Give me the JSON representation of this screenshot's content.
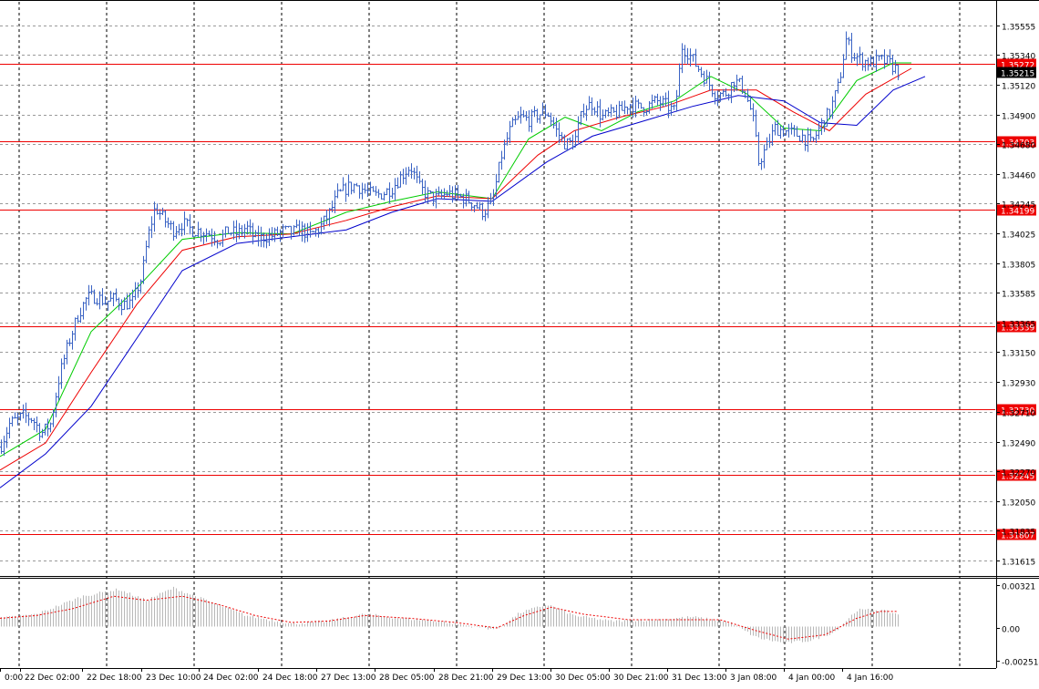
{
  "chart_data": [
    {
      "type": "candlestick",
      "role": "price",
      "ylim": [
        1.315,
        1.3573
      ],
      "y_ticks": [
        "1.35555",
        "1.35340",
        "1.35120",
        "1.34900",
        "1.34680",
        "1.34460",
        "1.34245",
        "1.34025",
        "1.33805",
        "1.33585",
        "1.33365",
        "1.33150",
        "1.32930",
        "1.32710",
        "1.32490",
        "1.32270",
        "1.32050",
        "1.31835",
        "1.31615"
      ],
      "x_ticks": [
        "0:00",
        "22 Dec 02:00",
        "22 Dec 18:00",
        "23 Dec 10:00",
        "24 Dec 02:00",
        "24 Dec 18:00",
        "27 Dec 13:00",
        "28 Dec 05:00",
        "28 Dec 21:00",
        "29 Dec 13:00",
        "30 Dec 05:00",
        "30 Dec 21:00",
        "31 Dec 13:00",
        "3 Jan 08:00",
        "4 Jan 00:00",
        "4 Jan 16:00"
      ],
      "grid": true,
      "horizontal_levels": [
        {
          "value": 1.35272,
          "label": "1.35272"
        },
        {
          "value": 1.34703,
          "label": "1.34703"
        },
        {
          "value": 1.34199,
          "label": "1.34199"
        },
        {
          "value": 1.33339,
          "label": "1.33339"
        },
        {
          "value": 1.3273,
          "label": "1.32730"
        },
        {
          "value": 1.32245,
          "label": "1.32245"
        },
        {
          "value": 1.31807,
          "label": "1.31807"
        }
      ],
      "current_price": {
        "value": 1.35215,
        "label": "1.35215"
      },
      "close_path": [
        [
          0,
          1.3245
        ],
        [
          10,
          1.3262
        ],
        [
          25,
          1.3268
        ],
        [
          35,
          1.3266
        ],
        [
          45,
          1.3255
        ],
        [
          55,
          1.3262
        ],
        [
          65,
          1.3298
        ],
        [
          75,
          1.3322
        ],
        [
          85,
          1.3342
        ],
        [
          95,
          1.3355
        ],
        [
          105,
          1.3356
        ],
        [
          115,
          1.3352
        ],
        [
          125,
          1.3354
        ],
        [
          135,
          1.335
        ],
        [
          145,
          1.3352
        ],
        [
          155,
          1.337
        ],
        [
          162,
          1.34
        ],
        [
          170,
          1.3422
        ],
        [
          180,
          1.3412
        ],
        [
          190,
          1.3405
        ],
        [
          200,
          1.341
        ],
        [
          210,
          1.3405
        ],
        [
          220,
          1.3404
        ],
        [
          230,
          1.3402
        ],
        [
          240,
          1.3398
        ],
        [
          250,
          1.3404
        ],
        [
          260,
          1.3402
        ],
        [
          270,
          1.3407
        ],
        [
          280,
          1.3398
        ],
        [
          290,
          1.34
        ],
        [
          300,
          1.3401
        ],
        [
          310,
          1.3404
        ],
        [
          320,
          1.3403
        ],
        [
          330,
          1.3405
        ],
        [
          340,
          1.3401
        ],
        [
          350,
          1.3406
        ],
        [
          360,
          1.3416
        ],
        [
          370,
          1.343
        ],
        [
          380,
          1.3436
        ],
        [
          390,
          1.3438
        ],
        [
          400,
          1.3434
        ],
        [
          410,
          1.343
        ],
        [
          420,
          1.3432
        ],
        [
          430,
          1.3436
        ],
        [
          440,
          1.3445
        ],
        [
          450,
          1.3452
        ],
        [
          460,
          1.3436
        ],
        [
          470,
          1.343
        ],
        [
          480,
          1.3428
        ],
        [
          490,
          1.3432
        ],
        [
          500,
          1.343
        ],
        [
          510,
          1.3428
        ],
        [
          520,
          1.3424
        ],
        [
          530,
          1.3418
        ],
        [
          540,
          1.3426
        ],
        [
          550,
          1.346
        ],
        [
          560,
          1.348
        ],
        [
          570,
          1.3488
        ],
        [
          580,
          1.3486
        ],
        [
          590,
          1.349
        ],
        [
          600,
          1.3492
        ],
        [
          610,
          1.3478
        ],
        [
          620,
          1.3468
        ],
        [
          630,
          1.347
        ],
        [
          640,
          1.3495
        ],
        [
          650,
          1.3498
        ],
        [
          660,
          1.3488
        ],
        [
          670,
          1.349
        ],
        [
          680,
          1.3492
        ],
        [
          690,
          1.3498
        ],
        [
          700,
          1.3495
        ],
        [
          710,
          1.3496
        ],
        [
          720,
          1.35
        ],
        [
          730,
          1.3497
        ],
        [
          740,
          1.3492
        ],
        [
          748,
          1.354
        ],
        [
          755,
          1.3535
        ],
        [
          765,
          1.3525
        ],
        [
          775,
          1.3515
        ],
        [
          785,
          1.3505
        ],
        [
          795,
          1.3505
        ],
        [
          805,
          1.3515
        ],
        [
          815,
          1.351
        ],
        [
          825,
          1.349
        ],
        [
          832,
          1.3455
        ],
        [
          840,
          1.3465
        ],
        [
          850,
          1.348
        ],
        [
          860,
          1.3478
        ],
        [
          870,
          1.3476
        ],
        [
          880,
          1.3474
        ],
        [
          890,
          1.3468
        ],
        [
          900,
          1.3482
        ],
        [
          910,
          1.3492
        ],
        [
          920,
          1.3512
        ],
        [
          928,
          1.3545
        ],
        [
          935,
          1.3535
        ],
        [
          945,
          1.353
        ],
        [
          955,
          1.3528
        ],
        [
          965,
          1.353
        ],
        [
          975,
          1.3528
        ],
        [
          985,
          1.3522
        ]
      ],
      "moving_averages": [
        {
          "color": "#00cc00",
          "points": [
            [
              0,
              1.3238
            ],
            [
              50,
              1.3258
            ],
            [
              100,
              1.333
            ],
            [
              150,
              1.3362
            ],
            [
              200,
              1.3398
            ],
            [
              260,
              1.3403
            ],
            [
              320,
              1.3402
            ],
            [
              380,
              1.3418
            ],
            [
              430,
              1.3426
            ],
            [
              480,
              1.3433
            ],
            [
              540,
              1.3428
            ],
            [
              580,
              1.3472
            ],
            [
              620,
              1.3488
            ],
            [
              660,
              1.3478
            ],
            [
              700,
              1.3492
            ],
            [
              740,
              1.35
            ],
            [
              780,
              1.3518
            ],
            [
              820,
              1.3505
            ],
            [
              860,
              1.348
            ],
            [
              900,
              1.3478
            ],
            [
              940,
              1.3515
            ],
            [
              980,
              1.3528
            ],
            [
              1000,
              1.3528
            ]
          ]
        },
        {
          "color": "#ee0000",
          "points": [
            [
              0,
              1.3228
            ],
            [
              50,
              1.3248
            ],
            [
              100,
              1.33
            ],
            [
              150,
              1.335
            ],
            [
              200,
              1.339
            ],
            [
              260,
              1.34
            ],
            [
              320,
              1.3402
            ],
            [
              380,
              1.3412
            ],
            [
              430,
              1.3422
            ],
            [
              480,
              1.343
            ],
            [
              540,
              1.3428
            ],
            [
              590,
              1.346
            ],
            [
              630,
              1.3478
            ],
            [
              680,
              1.3488
            ],
            [
              730,
              1.3496
            ],
            [
              780,
              1.3508
            ],
            [
              830,
              1.3508
            ],
            [
              870,
              1.3492
            ],
            [
              910,
              1.3478
            ],
            [
              950,
              1.3505
            ],
            [
              1000,
              1.3524
            ]
          ]
        },
        {
          "color": "#0000cc",
          "points": [
            [
              0,
              1.3215
            ],
            [
              50,
              1.324
            ],
            [
              100,
              1.3275
            ],
            [
              150,
              1.3325
            ],
            [
              200,
              1.3375
            ],
            [
              260,
              1.3395
            ],
            [
              320,
              1.34
            ],
            [
              380,
              1.3405
            ],
            [
              430,
              1.3418
            ],
            [
              480,
              1.3428
            ],
            [
              540,
              1.3426
            ],
            [
              600,
              1.3455
            ],
            [
              650,
              1.3474
            ],
            [
              700,
              1.3484
            ],
            [
              760,
              1.3496
            ],
            [
              810,
              1.3504
            ],
            [
              860,
              1.35
            ],
            [
              900,
              1.3484
            ],
            [
              940,
              1.3482
            ],
            [
              980,
              1.3508
            ],
            [
              1015,
              1.3518
            ]
          ]
        }
      ]
    },
    {
      "type": "histogram",
      "role": "oscillator",
      "ylim": [
        -0.003,
        0.0034
      ],
      "y_ticks": [
        "0.00321",
        "0.00",
        "-0.002514"
      ],
      "bars_path": [
        [
          0,
          0.0006
        ],
        [
          40,
          0.0009
        ],
        [
          90,
          0.0022
        ],
        [
          130,
          0.0027
        ],
        [
          160,
          0.0019
        ],
        [
          190,
          0.0028
        ],
        [
          230,
          0.0018
        ],
        [
          270,
          0.0008
        ],
        [
          320,
          0.0002
        ],
        [
          360,
          0.0004
        ],
        [
          400,
          0.0009
        ],
        [
          440,
          0.0006
        ],
        [
          480,
          0.0004
        ],
        [
          520,
          0.0
        ],
        [
          545,
          -0.0002
        ],
        [
          570,
          0.001
        ],
        [
          600,
          0.0016
        ],
        [
          630,
          0.0008
        ],
        [
          670,
          0.0004
        ],
        [
          720,
          0.0005
        ],
        [
          760,
          0.0007
        ],
        [
          800,
          0.0003
        ],
        [
          830,
          -0.0008
        ],
        [
          860,
          -0.0012
        ],
        [
          890,
          -0.001
        ],
        [
          915,
          -0.0004
        ],
        [
          940,
          0.0012
        ],
        [
          965,
          0.0012
        ],
        [
          985,
          0.0009
        ]
      ],
      "signal_path": [
        [
          0,
          0.0006
        ],
        [
          40,
          0.0008
        ],
        [
          80,
          0.0013
        ],
        [
          125,
          0.0022
        ],
        [
          160,
          0.0019
        ],
        [
          200,
          0.0022
        ],
        [
          240,
          0.0016
        ],
        [
          280,
          0.0008
        ],
        [
          320,
          0.0003
        ],
        [
          360,
          0.0004
        ],
        [
          400,
          0.0008
        ],
        [
          450,
          0.0006
        ],
        [
          500,
          0.0003
        ],
        [
          545,
          -0.0001
        ],
        [
          575,
          0.0008
        ],
        [
          605,
          0.0014
        ],
        [
          640,
          0.0009
        ],
        [
          690,
          0.0005
        ],
        [
          740,
          0.0005
        ],
        [
          790,
          0.0005
        ],
        [
          830,
          -0.0003
        ],
        [
          865,
          -0.0009
        ],
        [
          905,
          -0.0006
        ],
        [
          940,
          0.0006
        ],
        [
          965,
          0.0011
        ],
        [
          985,
          0.0011
        ]
      ]
    }
  ],
  "colors": {
    "candle": "#3a63c4",
    "level": "#ee0000",
    "osc_bar": "#b8b8b8",
    "osc_signal": "#ee0000",
    "grid": "#7a7a7a",
    "current_price_bg": "#000000"
  }
}
